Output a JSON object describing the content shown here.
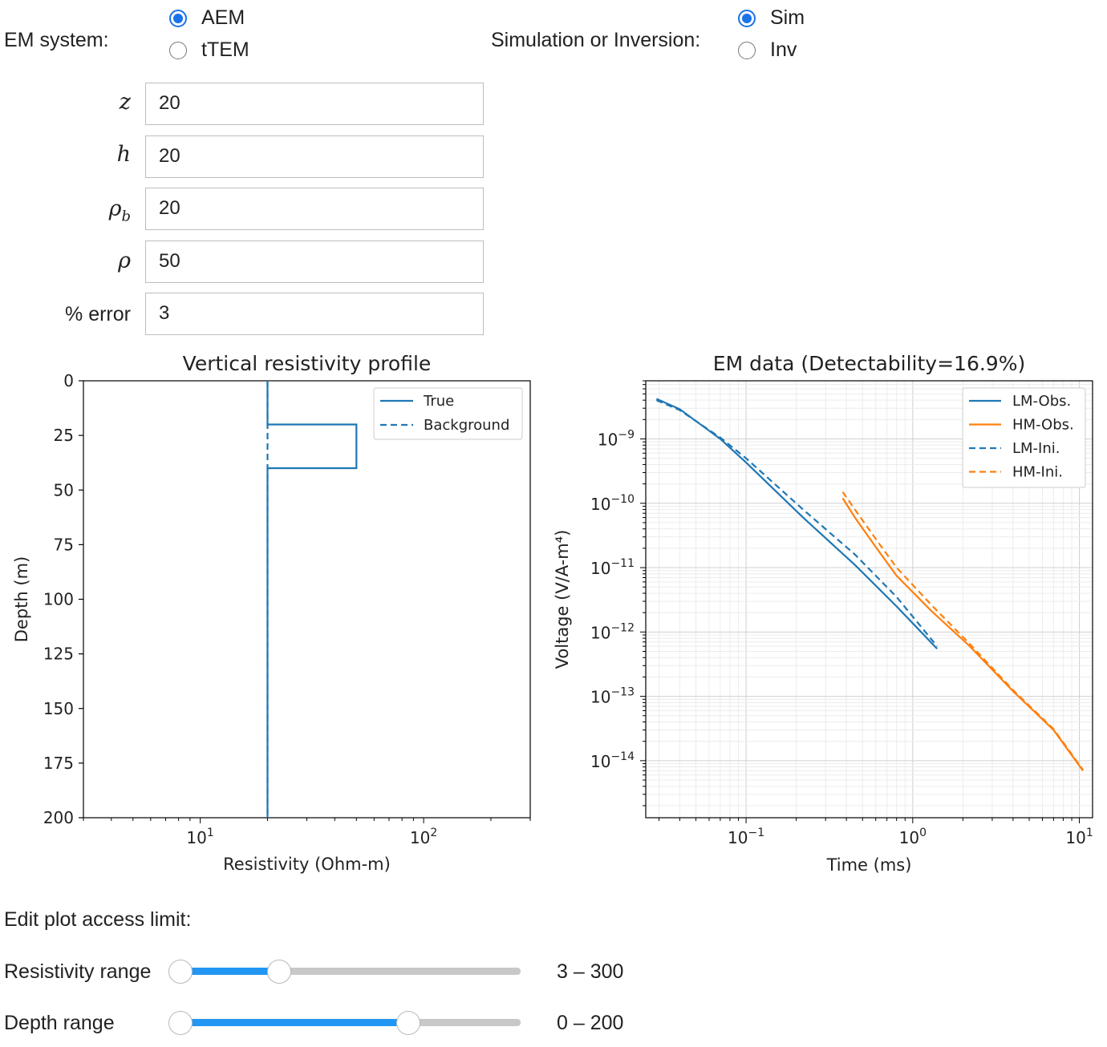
{
  "controls": {
    "em_system": {
      "label": "EM system:",
      "options": [
        "AEM",
        "tTEM"
      ],
      "selected": 0
    },
    "mode": {
      "label": "Simulation or Inversion:",
      "options": [
        "Sim",
        "Inv"
      ],
      "selected": 0
    },
    "fields": [
      {
        "label": "z",
        "math": true,
        "value": "20"
      },
      {
        "label": "h",
        "math": true,
        "value": "20"
      },
      {
        "label": "ρ_b",
        "math": true,
        "value": "20"
      },
      {
        "label": "ρ",
        "math": true,
        "value": "50"
      },
      {
        "label": "% error",
        "math": false,
        "value": "3"
      }
    ],
    "limits_heading": "Edit plot access limit:",
    "sliders": [
      {
        "label": "Resistivity range",
        "readout": "3 – 300",
        "low": 0.0,
        "high": 0.29
      },
      {
        "label": "Depth range",
        "readout": "0 – 200",
        "low": 0.0,
        "high": 0.67
      }
    ]
  },
  "chart_data": [
    {
      "type": "line",
      "title": "Vertical resistivity profile",
      "xlabel": "Resistivity (Ohm-m)",
      "ylabel": "Depth (m)",
      "xscale": "log",
      "xlim": [
        3,
        300
      ],
      "ylim": [
        200,
        0
      ],
      "yticks": [
        0,
        25,
        50,
        75,
        100,
        125,
        150,
        175,
        200
      ],
      "xticks": [
        10,
        100
      ],
      "xtick_labels": [
        "10^1",
        "10^2"
      ],
      "legend": "top-right",
      "series": [
        {
          "name": "True",
          "style": "solid",
          "color": "#1f77b4",
          "points": [
            [
              20,
              0
            ],
            [
              20,
              20
            ],
            [
              50,
              20
            ],
            [
              50,
              40
            ],
            [
              20,
              40
            ],
            [
              20,
              200
            ]
          ]
        },
        {
          "name": "Background",
          "style": "dashed",
          "color": "#1f77b4",
          "points": [
            [
              20,
              0
            ],
            [
              20,
              200
            ]
          ]
        }
      ]
    },
    {
      "type": "line",
      "title": "EM data (Detectability=16.9%)",
      "xlabel": "Time (ms)",
      "ylabel": "Voltage (V/A-m⁴)",
      "xscale": "log",
      "yscale": "log",
      "xlim": [
        0.025,
        12
      ],
      "ylim": [
        1.3e-15,
        8e-09
      ],
      "xtick_labels": [
        "10^-1",
        "10^0",
        "10^1"
      ],
      "ytick_labels": [
        "10^-9",
        "10^-10",
        "10^-11",
        "10^-12",
        "10^-13",
        "10^-14"
      ],
      "grid": true,
      "legend": "top-right",
      "series": [
        {
          "name": "LM-Obs.",
          "style": "solid",
          "color": "#1f77b4",
          "x": [
            0.029,
            0.04,
            0.07,
            0.1,
            0.22,
            0.45,
            0.8,
            1.4
          ],
          "y": [
            4.2e-09,
            2.9e-09,
            1e-09,
            4.3e-10,
            6e-11,
            1.1e-11,
            2.5e-12,
            5.5e-13
          ]
        },
        {
          "name": "HM-Obs.",
          "style": "solid",
          "color": "#ff7f0e",
          "x": [
            0.38,
            0.45,
            0.6,
            0.8,
            1.3,
            2.2,
            4,
            7,
            10.5
          ],
          "y": [
            1.2e-10,
            6e-11,
            2.1e-11,
            7.5e-12,
            2.1e-12,
            6e-13,
            1.2e-13,
            3e-14,
            7e-15
          ]
        },
        {
          "name": "LM-Ini.",
          "style": "dashed",
          "color": "#1f77b4",
          "x": [
            0.029,
            0.04,
            0.07,
            0.1,
            0.22,
            0.45,
            0.8,
            1.4
          ],
          "y": [
            4e-09,
            2.8e-09,
            1.05e-09,
            5e-10,
            8e-11,
            1.6e-11,
            3.5e-12,
            6e-13
          ]
        },
        {
          "name": "HM-Ini.",
          "style": "dashed",
          "color": "#ff7f0e",
          "x": [
            0.38,
            0.45,
            0.6,
            0.8,
            1.3,
            2.2,
            4,
            7,
            10.5
          ],
          "y": [
            1.5e-10,
            8e-11,
            2.8e-11,
            1e-11,
            2.6e-12,
            6.5e-13,
            1.25e-13,
            3.1e-14,
            7.2e-15
          ]
        }
      ]
    }
  ]
}
